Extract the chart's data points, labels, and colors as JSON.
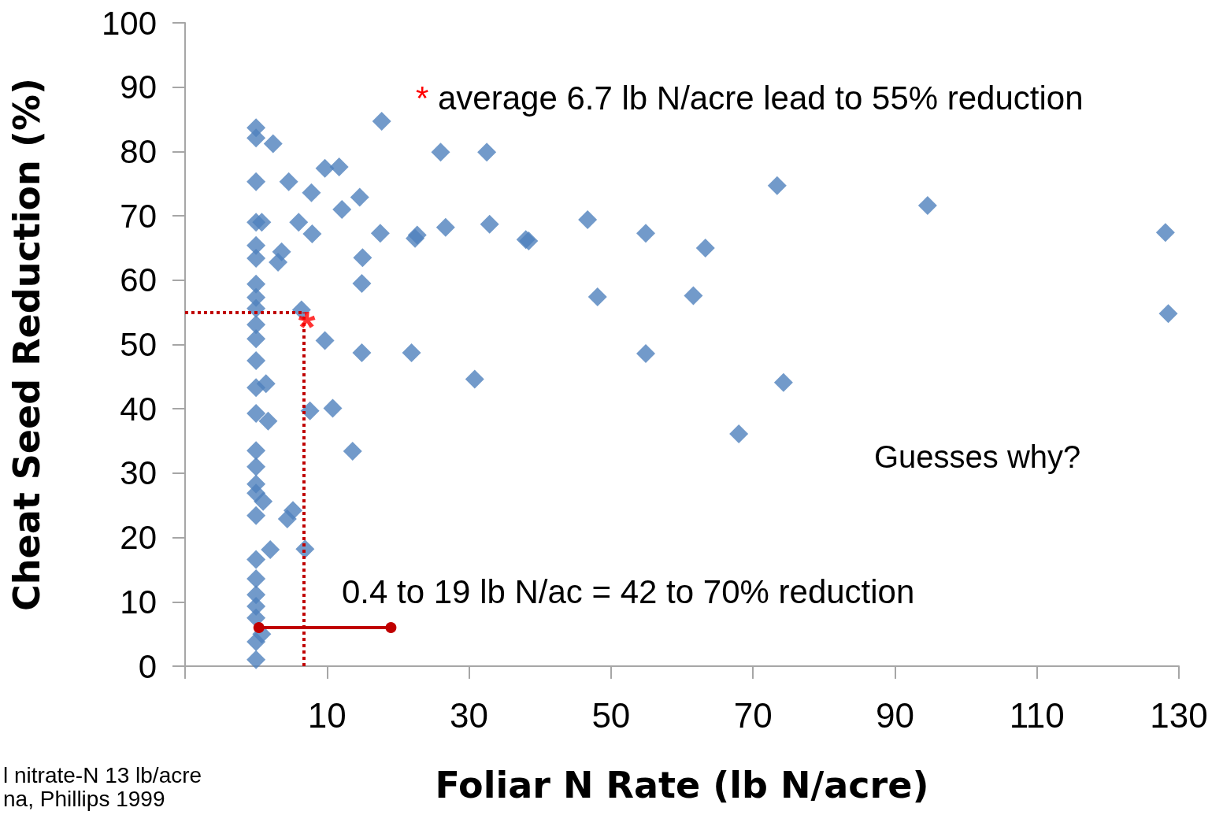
{
  "chart_data": {
    "type": "scatter",
    "xlabel": "Foliar N Rate (lb N/acre)",
    "ylabel": "Cheat Seed Reduction (%)",
    "xlim": [
      -10,
      130
    ],
    "xticks": [
      {
        "value": -10,
        "label": null
      },
      10,
      30,
      50,
      70,
      90,
      110,
      130
    ],
    "ylim": [
      0,
      100
    ],
    "yticks": [
      0,
      10,
      20,
      30,
      40,
      50,
      60,
      70,
      80,
      90,
      100
    ],
    "grid": false,
    "marker": "diamond",
    "series": [
      {
        "color": "#4f81bd",
        "x": [
          0,
          0,
          0,
          0,
          0,
          0,
          0,
          0,
          0,
          0,
          0,
          0,
          0,
          0,
          0,
          0,
          0,
          0,
          0,
          0,
          0,
          0,
          0,
          0,
          0,
          0,
          0.8,
          2.4,
          1.4,
          1.7,
          1,
          2,
          0.8,
          4.6,
          3.6,
          3.1,
          6,
          7.8,
          7.9,
          6.4,
          9.7,
          11.7,
          12.1,
          14.6,
          15,
          14.9,
          9.7,
          14.9,
          7.6,
          10.8,
          13.6,
          5.2,
          4.4,
          6.9,
          17.7,
          17.5,
          26,
          32.5,
          26.7,
          32.9,
          22.4,
          22.7,
          38,
          38.4,
          46.7,
          48.1,
          21.9,
          30.8,
          54.9,
          63.3,
          61.6,
          54.9,
          68,
          73.4,
          74.3,
          94.6,
          128.1,
          128.5
        ],
        "values": [
          83.7,
          82.1,
          75.3,
          69,
          65.4,
          63.4,
          59.4,
          57.3,
          55.6,
          53.1,
          50.9,
          47.5,
          43.3,
          39.3,
          33.5,
          31,
          28.3,
          26.9,
          23.4,
          16.6,
          13.6,
          11.1,
          9.3,
          7.5,
          3.8,
          1,
          69,
          81.2,
          43.9,
          38.1,
          25.6,
          18.1,
          5,
          75.3,
          64.4,
          62.8,
          69,
          73.6,
          67.2,
          55.4,
          77.4,
          77.6,
          71,
          72.9,
          63.5,
          59.5,
          50.6,
          48.7,
          39.7,
          40.1,
          33.4,
          24.2,
          22.9,
          18.2,
          84.7,
          67.3,
          79.9,
          79.9,
          68.2,
          68.7,
          66.5,
          67,
          66.3,
          66.1,
          69.4,
          57.4,
          48.7,
          44.6,
          67.3,
          65,
          57.6,
          48.6,
          36.1,
          74.7,
          44.1,
          71.6,
          67.4,
          54.8
        ]
      },
      {
        "type": "line",
        "color": "#c00000",
        "marker": "circle",
        "line_style": "solid",
        "x": [
          0.4,
          19
        ],
        "values": [
          6,
          6
        ]
      }
    ],
    "ref_lines": [
      {
        "axis": "y",
        "value": 55,
        "color": "#c00000",
        "line_style": "dotted"
      },
      {
        "axis": "x",
        "value": 6.7,
        "color": "#c00000",
        "line_style": "dotted"
      }
    ],
    "annotations": [
      {
        "text": "*",
        "x": 6.7,
        "y": 55
      },
      "* average 6.7 lb N/acre lead to 55% reduction",
      "0.4 to 19 lb N/ac = 42 to 70% reduction",
      "Guesses why?",
      "l nitrate-N 13 lb/acre",
      "na, Phillips 1999"
    ]
  }
}
